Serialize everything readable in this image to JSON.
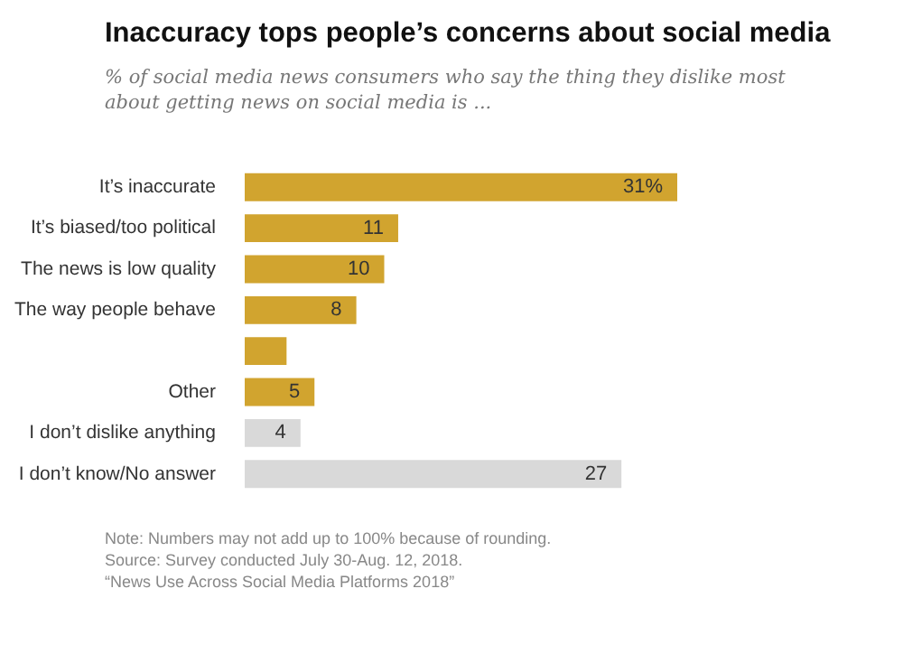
{
  "chart_data": {
    "type": "bar",
    "orientation": "horizontal",
    "title": "Inaccuracy tops people’s concerns about social media",
    "subtitle": "% of social media news consumers who say the thing they dislike most about getting news on social media is ...",
    "categories": [
      "It’s inaccurate",
      "It’s biased/too political",
      "The news is low quality",
      "The way people behave",
      null,
      "Other",
      "I don’t dislike anything",
      "I don’t know/No answer"
    ],
    "values": [
      31,
      11,
      10,
      8,
      3,
      5,
      4,
      27
    ],
    "value_labels": [
      "31%",
      "11",
      "10",
      "8",
      null,
      "5",
      "4",
      "27"
    ],
    "colors": [
      "#d1a42f",
      "#d1a42f",
      "#d1a42f",
      "#d1a42f",
      "#d1a42f",
      "#d1a42f",
      "#d9d9d9",
      "#d9d9d9"
    ],
    "annotations": [
      "Note: Numbers may not add up to 100% because of rounding.",
      "Source: Survey conducted July 30-Aug. 12, 2018.",
      "“News Use Across Social Media Platforms 2018”"
    ]
  }
}
